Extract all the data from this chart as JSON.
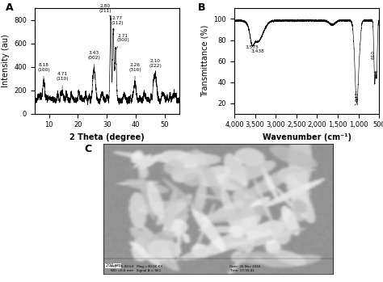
{
  "panel_a": {
    "label": "A",
    "xlabel": "2 Theta (degree)",
    "ylabel": "Intensity (au)",
    "xlim": [
      5,
      55
    ],
    "ylim": [
      0,
      900
    ],
    "yticks": [
      0,
      200,
      400,
      600,
      800
    ],
    "xticks": [
      10,
      20,
      30,
      40,
      50
    ]
  },
  "panel_b": {
    "label": "B",
    "xlabel": "Wavenumber (cm⁻¹)",
    "ylabel": "Transmittance (%)",
    "xlim": [
      4000,
      500
    ],
    "ylim": [
      10,
      110
    ],
    "yticks": [
      20,
      40,
      60,
      80,
      100
    ],
    "xticks": [
      4000,
      3500,
      3000,
      2500,
      2000,
      1500,
      1000,
      500
    ],
    "xticklabels": [
      "4,000",
      "3,500",
      "3,000",
      "2,500",
      "2,000",
      "1,500",
      "1,000",
      "500"
    ]
  },
  "panel_c": {
    "label": "C"
  },
  "figure_bg": "#ffffff",
  "fontsize_label": 7,
  "fontsize_tick": 6,
  "fontsize_panel": 9,
  "fontsize_annot": 5
}
